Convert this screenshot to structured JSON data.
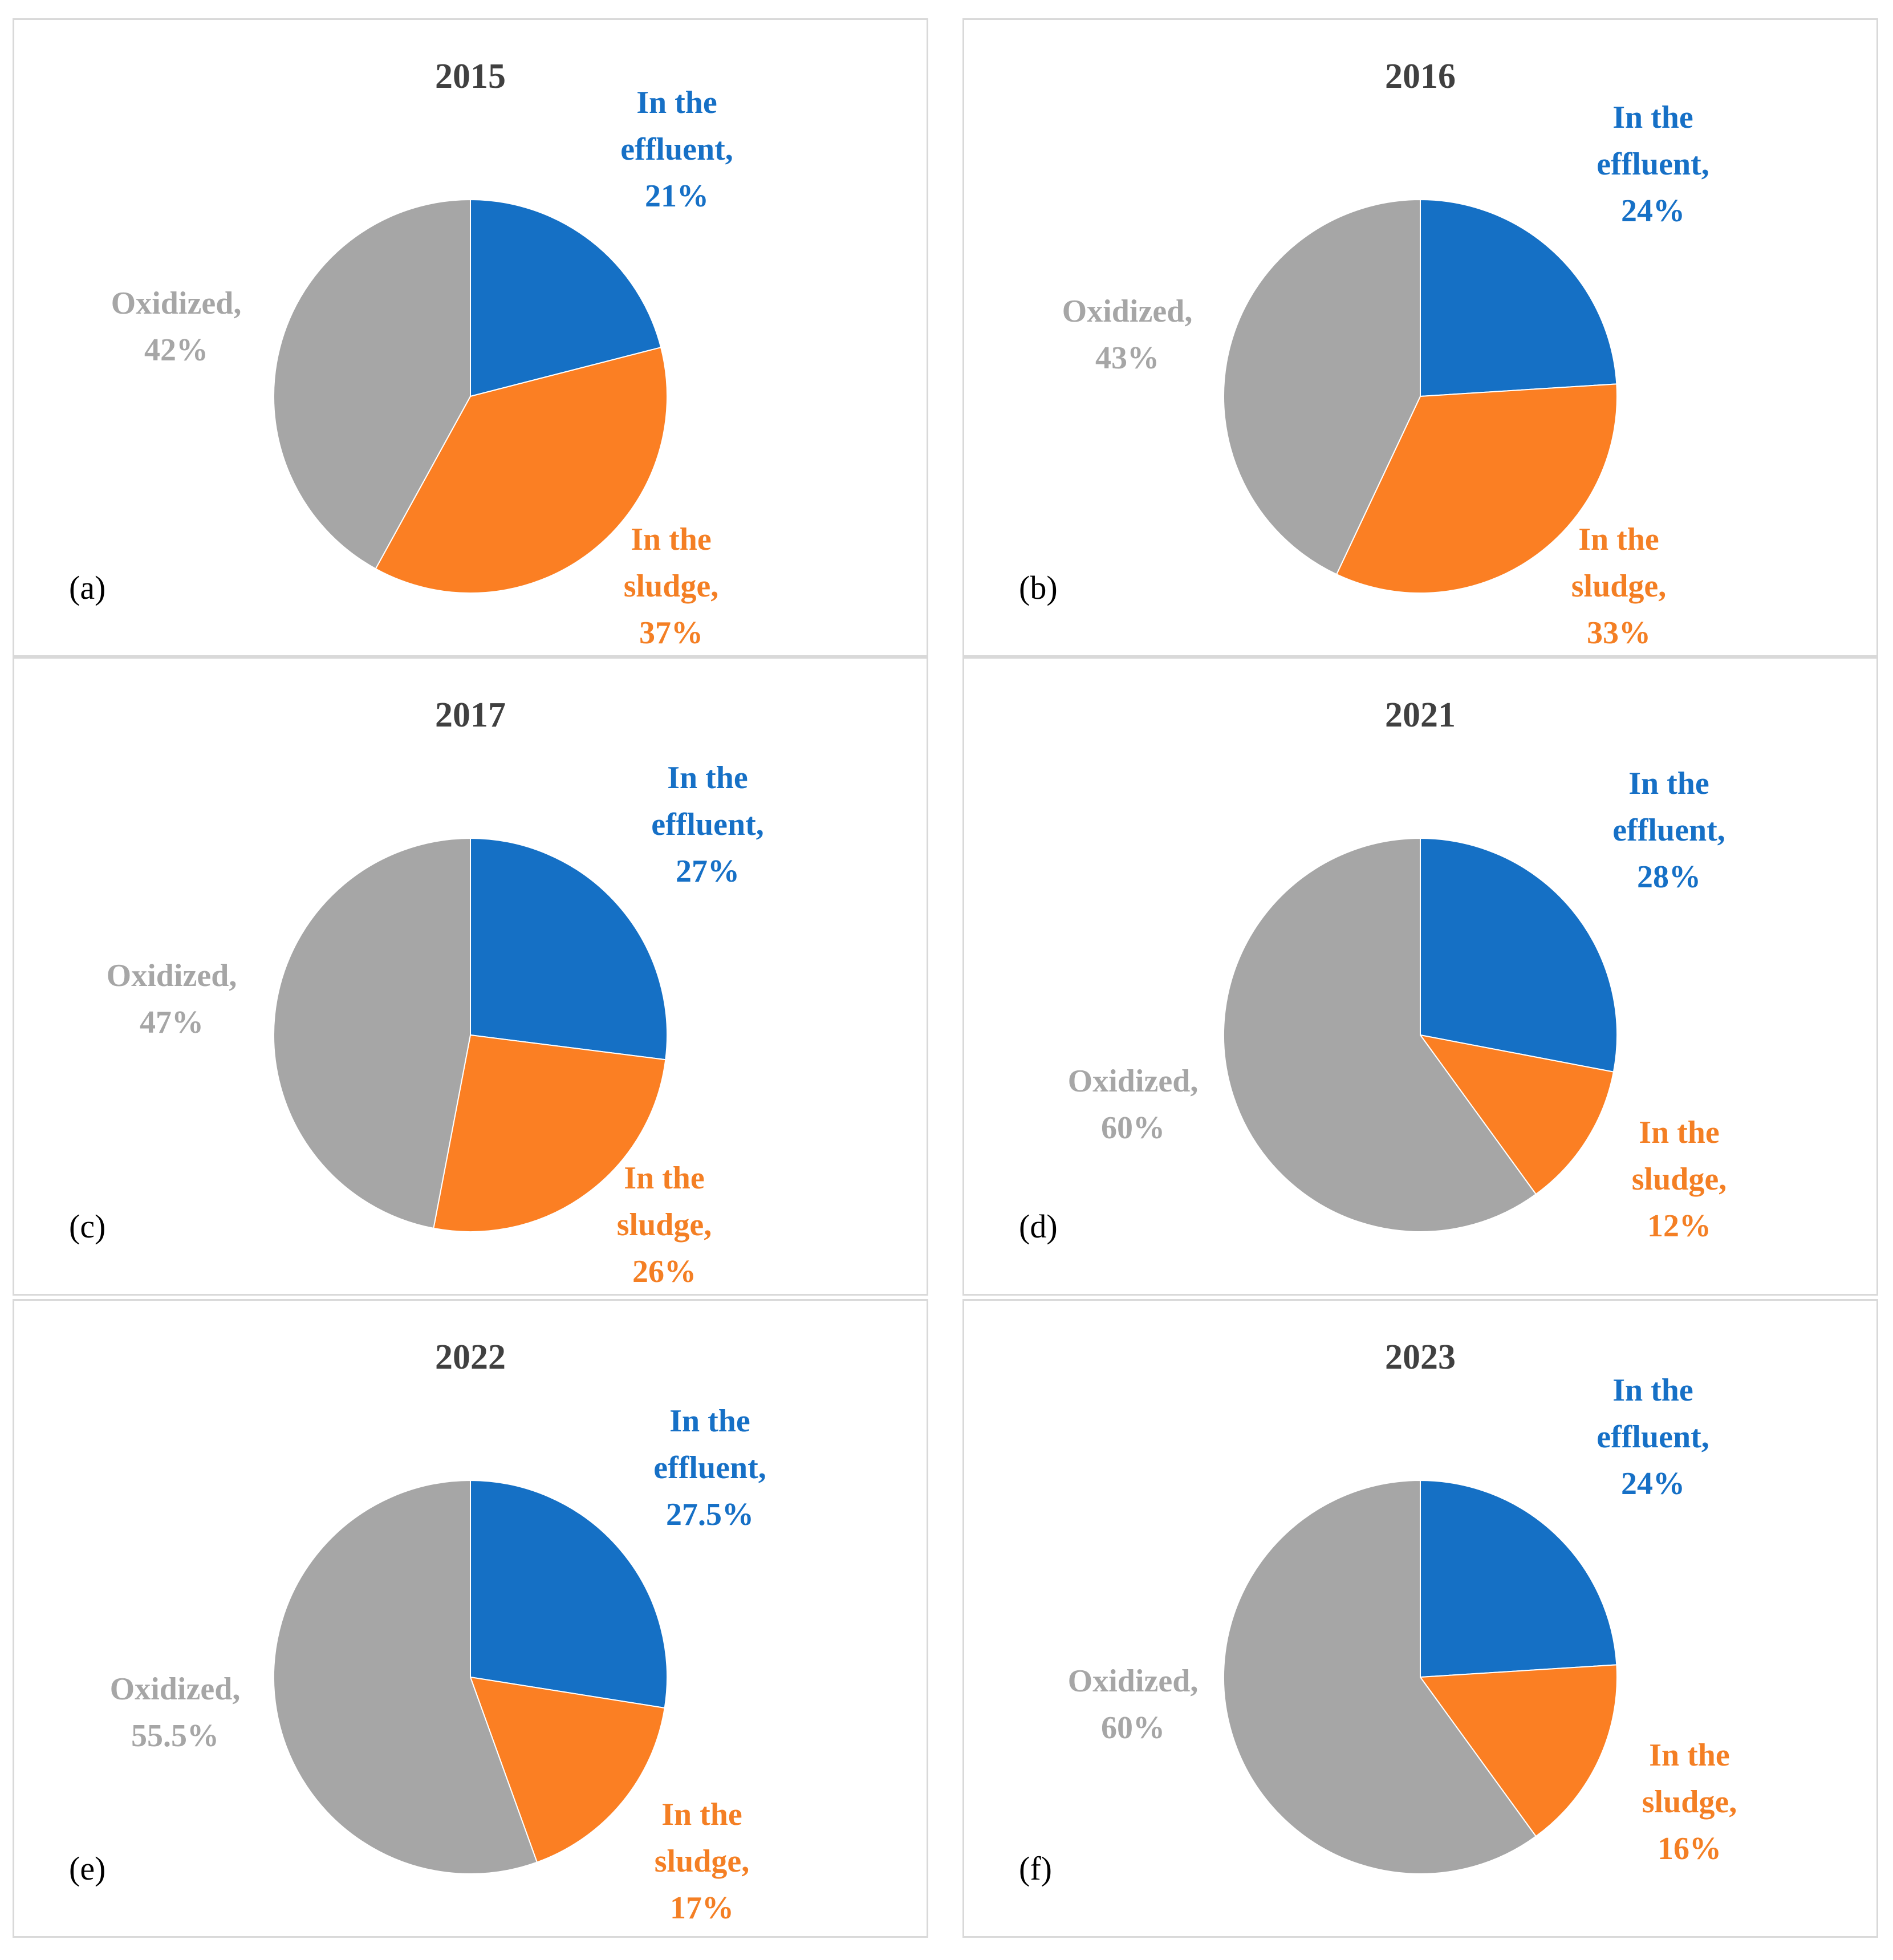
{
  "colors": {
    "effluent": "#1570c5",
    "sludge": "#fb7f23",
    "oxidized": "#a6a6a6",
    "title": "#404040",
    "border": "#d9d9d9"
  },
  "chart_data": [
    {
      "type": "pie",
      "panel": "(a)",
      "title": "2015",
      "slices": [
        {
          "label_line1": "In the",
          "label_line2": "effluent,",
          "value": 21,
          "value_label": "21%",
          "color_key": "effluent"
        },
        {
          "label_line1": "In the",
          "label_line2": "sludge,",
          "value": 37,
          "value_label": "37%",
          "color_key": "sludge"
        },
        {
          "label_line1": "",
          "label_line2": "Oxidized,",
          "value": 42,
          "value_label": "42%",
          "color_key": "oxidized"
        }
      ]
    },
    {
      "type": "pie",
      "panel": "(b)",
      "title": "2016",
      "slices": [
        {
          "label_line1": "In the",
          "label_line2": "effluent,",
          "value": 24,
          "value_label": "24%",
          "color_key": "effluent"
        },
        {
          "label_line1": "In the",
          "label_line2": "sludge,",
          "value": 33,
          "value_label": "33%",
          "color_key": "sludge"
        },
        {
          "label_line1": "",
          "label_line2": "Oxidized,",
          "value": 43,
          "value_label": "43%",
          "color_key": "oxidized"
        }
      ]
    },
    {
      "type": "pie",
      "panel": "(c)",
      "title": "2017",
      "slices": [
        {
          "label_line1": "In the",
          "label_line2": "effluent,",
          "value": 27,
          "value_label": "27%",
          "color_key": "effluent"
        },
        {
          "label_line1": "In the",
          "label_line2": "sludge,",
          "value": 26,
          "value_label": "26%",
          "color_key": "sludge"
        },
        {
          "label_line1": "",
          "label_line2": "Oxidized,",
          "value": 47,
          "value_label": "47%",
          "color_key": "oxidized"
        }
      ]
    },
    {
      "type": "pie",
      "panel": "(d)",
      "title": "2021",
      "slices": [
        {
          "label_line1": "In the",
          "label_line2": "effluent,",
          "value": 28,
          "value_label": "28%",
          "color_key": "effluent"
        },
        {
          "label_line1": "In the",
          "label_line2": "sludge,",
          "value": 12,
          "value_label": "12%",
          "color_key": "sludge"
        },
        {
          "label_line1": "",
          "label_line2": "Oxidized,",
          "value": 60,
          "value_label": "60%",
          "color_key": "oxidized"
        }
      ]
    },
    {
      "type": "pie",
      "panel": "(e)",
      "title": "2022",
      "slices": [
        {
          "label_line1": "In the",
          "label_line2": "effluent,",
          "value": 27.5,
          "value_label": "27.5%",
          "color_key": "effluent"
        },
        {
          "label_line1": "In the",
          "label_line2": "sludge,",
          "value": 17,
          "value_label": "17%",
          "color_key": "sludge"
        },
        {
          "label_line1": "",
          "label_line2": "Oxidized,",
          "value": 55.5,
          "value_label": "55.5%",
          "color_key": "oxidized"
        }
      ]
    },
    {
      "type": "pie",
      "panel": "(f)",
      "title": "2023",
      "slices": [
        {
          "label_line1": "In the",
          "label_line2": "effluent,",
          "value": 24,
          "value_label": "24%",
          "color_key": "effluent"
        },
        {
          "label_line1": "In the",
          "label_line2": "sludge,",
          "value": 16,
          "value_label": "16%",
          "color_key": "sludge"
        },
        {
          "label_line1": "",
          "label_line2": "Oxidized,",
          "value": 60,
          "value_label": "60%",
          "color_key": "oxidized"
        }
      ]
    }
  ]
}
